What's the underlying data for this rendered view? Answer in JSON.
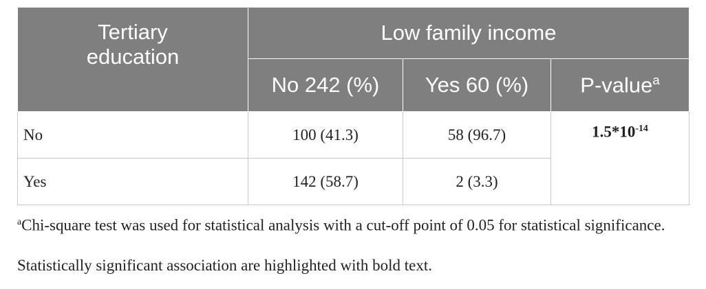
{
  "table": {
    "header": {
      "row_label": "Tertiary education",
      "group": "Low family income",
      "columns": [
        "No 242 (%)",
        "Yes 60 (%)"
      ],
      "p_value": {
        "text": "P-value",
        "sup": "a"
      }
    },
    "rows": [
      {
        "label": "No",
        "cells": [
          "100 (41.3)",
          "58 (96.7)"
        ]
      },
      {
        "label": "Yes",
        "cells": [
          "142 (58.7)",
          "2 (3.3)"
        ]
      }
    ],
    "p_value": {
      "base": "1.5*10",
      "exponent": "-14"
    }
  },
  "footnotes": [
    {
      "marker": "a",
      "text": "Chi-square test was used for statistical analysis with a cut-off point of 0.05 for statistical significance."
    },
    {
      "text": "Statistically significant association are highlighted with bold text."
    }
  ]
}
